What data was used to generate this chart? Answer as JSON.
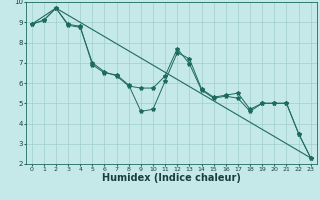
{
  "xlabel": "Humidex (Indice chaleur)",
  "bg_color": "#c5e8e8",
  "line_color": "#1e6b5e",
  "grid_color": "#99c9c9",
  "xlim": [
    -0.5,
    23.5
  ],
  "ylim": [
    2,
    10
  ],
  "yticks": [
    2,
    3,
    4,
    5,
    6,
    7,
    8,
    9,
    10
  ],
  "xticks": [
    0,
    1,
    2,
    3,
    4,
    5,
    6,
    7,
    8,
    9,
    10,
    11,
    12,
    13,
    14,
    15,
    16,
    17,
    18,
    19,
    20,
    21,
    22,
    23
  ],
  "line1_x": [
    0,
    1,
    2,
    3,
    4,
    5,
    6,
    7,
    8,
    9,
    10,
    11,
    12,
    13,
    14,
    15,
    16,
    17,
    18,
    19,
    20,
    21,
    22,
    23
  ],
  "line1_y": [
    8.9,
    9.1,
    9.7,
    8.9,
    8.8,
    6.9,
    6.5,
    6.4,
    5.9,
    4.6,
    4.7,
    6.1,
    7.5,
    7.2,
    5.7,
    5.3,
    5.4,
    5.5,
    4.7,
    5.0,
    5.0,
    5.0,
    3.5,
    2.3
  ],
  "line2_x": [
    0,
    1,
    2,
    3,
    4,
    5,
    6,
    7,
    8,
    9,
    10,
    11,
    12,
    13,
    14,
    15,
    16,
    17,
    18,
    19,
    20,
    21,
    22,
    23
  ],
  "line2_y": [
    8.9,
    9.1,
    9.7,
    8.85,
    8.75,
    7.0,
    6.55,
    6.35,
    5.85,
    5.75,
    5.75,
    6.35,
    7.7,
    6.95,
    5.65,
    5.25,
    5.35,
    5.25,
    4.6,
    5.0,
    5.0,
    5.0,
    3.5,
    2.3
  ],
  "line3_x": [
    0,
    2,
    23
  ],
  "line3_y": [
    8.9,
    9.7,
    2.3
  ],
  "marker_size": 3,
  "xlabel_fontsize": 7,
  "tick_fontsize": 4.5
}
